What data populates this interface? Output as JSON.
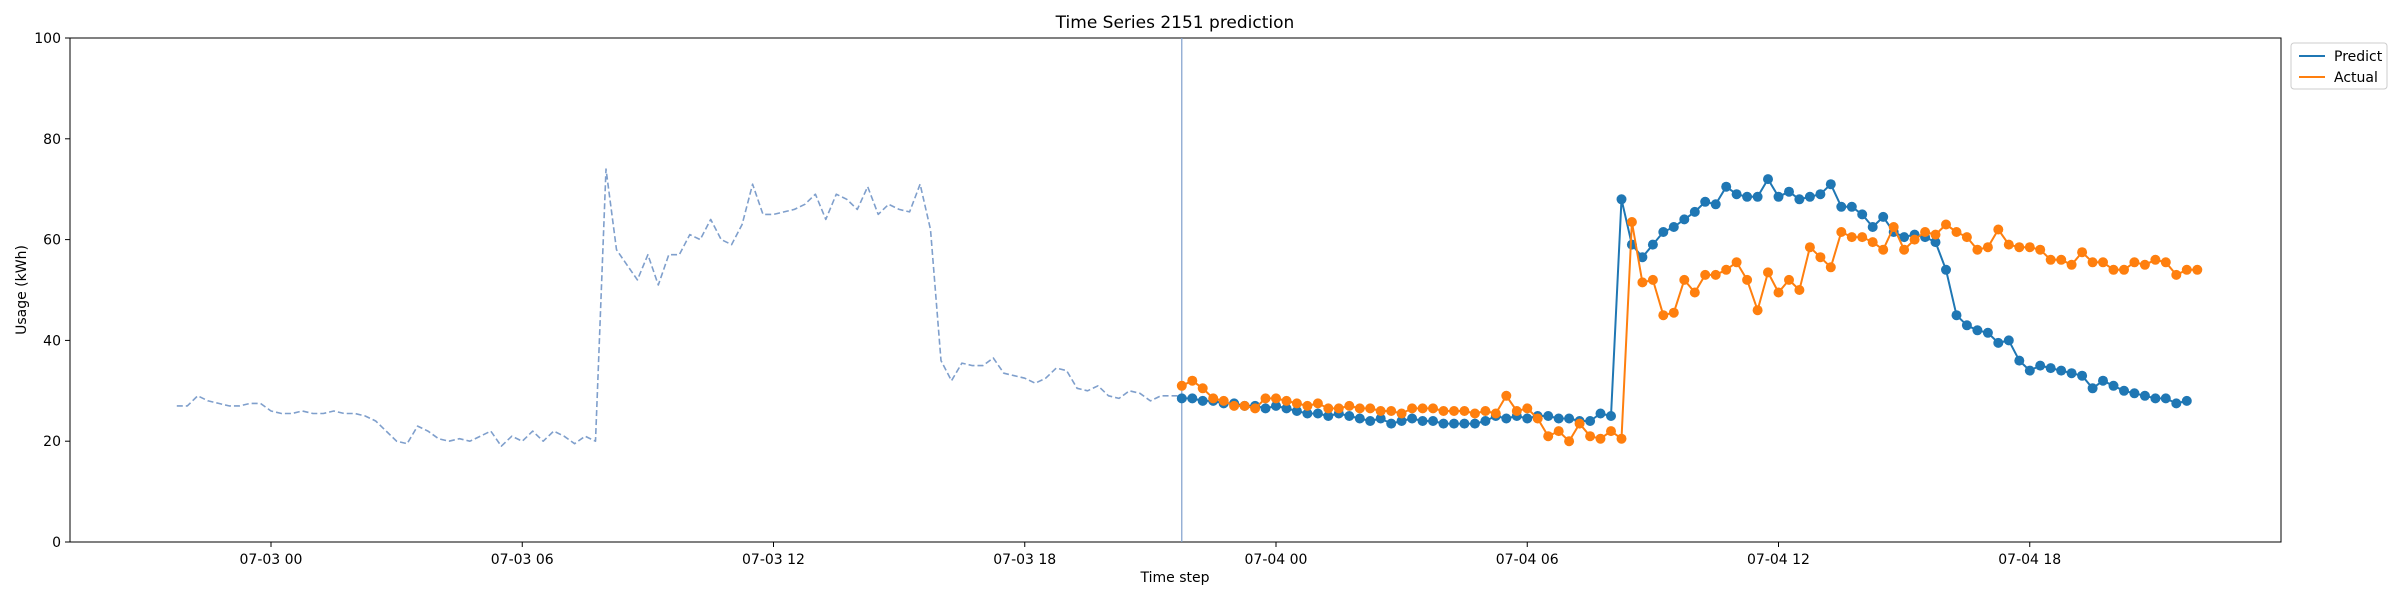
{
  "chart_data": {
    "type": "line",
    "title": "Time Series 2151 prediction",
    "xlabel": "Time step",
    "ylabel": "Usage (kWh)",
    "ylim": [
      0,
      100
    ],
    "xlim_hours": [
      -4.8,
      48.0
    ],
    "x_unit": "hours since 07-03 00:00",
    "yticks": [
      0,
      20,
      40,
      60,
      80,
      100
    ],
    "xticks": [
      {
        "hour": 0,
        "label": "07-03 00"
      },
      {
        "hour": 6,
        "label": "07-03 06"
      },
      {
        "hour": 12,
        "label": "07-03 12"
      },
      {
        "hour": 18,
        "label": "07-03 18"
      },
      {
        "hour": 24,
        "label": "07-04 00"
      },
      {
        "hour": 30,
        "label": "07-04 06"
      },
      {
        "hour": 36,
        "label": "07-04 12"
      },
      {
        "hour": 42,
        "label": "07-04 18"
      }
    ],
    "legend": {
      "position": "outside-top-right",
      "entries": [
        "Predict",
        "Actual"
      ]
    },
    "grid": false,
    "forecast_start_hour": 21.75,
    "series": [
      {
        "name": "History",
        "style": "dashed",
        "color": "#7f9fcc",
        "x_start": -2.25,
        "x_step": 0.25,
        "values": [
          27,
          27,
          29,
          28,
          27.5,
          27,
          27,
          27.5,
          27.5,
          26,
          25.5,
          25.5,
          26,
          25.5,
          25.5,
          26,
          25.5,
          25.5,
          25,
          24,
          22,
          20,
          19.5,
          23,
          22,
          20.5,
          20,
          20.5,
          20,
          21,
          22,
          19,
          21,
          20,
          22,
          20,
          22,
          21,
          19.5,
          21,
          20,
          74,
          58,
          55,
          52,
          57,
          51,
          57,
          57,
          61,
          60,
          64,
          60,
          59,
          63,
          71,
          65,
          65,
          65.5,
          66,
          67,
          69,
          64,
          69,
          68,
          66,
          70.5,
          65,
          67,
          66,
          65.5,
          71,
          62,
          36,
          32,
          35.5,
          35,
          35,
          36.5,
          33.5,
          33,
          32.5,
          31.5,
          32.5,
          34.5,
          34,
          30.5,
          30,
          31,
          29,
          28.5,
          30,
          29.5,
          28,
          29,
          29,
          29
        ]
      },
      {
        "name": "Predict",
        "color": "#1f77b4",
        "x_start": 21.75,
        "x_step": 0.25,
        "values": [
          28.5,
          28.5,
          28,
          28,
          27.5,
          27.5,
          27,
          27,
          26.5,
          27,
          26.5,
          26,
          25.5,
          25.5,
          25,
          25.5,
          25,
          24.5,
          24,
          24.5,
          23.5,
          24,
          24.5,
          24,
          24,
          23.5,
          23.5,
          23.5,
          23.5,
          24,
          25,
          24.5,
          25,
          24.5,
          25,
          25,
          24.5,
          24.5,
          24,
          24,
          25.5,
          25,
          68,
          59,
          56.5,
          59,
          61.5,
          62.5,
          64,
          65.5,
          67.5,
          67,
          70.5,
          69,
          68.5,
          68.5,
          72,
          68.5,
          69.5,
          68,
          68.5,
          69,
          71,
          66.5,
          66.5,
          65,
          62.5,
          64.5,
          61.5,
          60.5,
          61,
          60.5,
          59.5,
          54,
          45,
          43,
          42,
          41.5,
          39.5,
          40,
          36,
          34,
          35,
          34.5,
          34,
          33.5,
          33,
          30.5,
          32,
          31,
          30,
          29.5,
          29,
          28.5,
          28.5,
          27.5,
          28
        ]
      },
      {
        "name": "Actual",
        "color": "#ff7f0e",
        "x_start": 21.75,
        "x_step": 0.25,
        "values": [
          31,
          32,
          30.5,
          28.5,
          28,
          27,
          27,
          26.5,
          28.5,
          28.5,
          28,
          27.5,
          27,
          27.5,
          26.5,
          26.5,
          27,
          26.5,
          26.5,
          26,
          26,
          25.5,
          26.5,
          26.5,
          26.5,
          26,
          26,
          26,
          25.5,
          26,
          25.5,
          29,
          26,
          26.5,
          24.5,
          21,
          22,
          20,
          23.5,
          21,
          20.5,
          22,
          20.5,
          63.5,
          51.5,
          52,
          45,
          45.5,
          52,
          49.5,
          53,
          53,
          54,
          55.5,
          52,
          46,
          53.5,
          49.5,
          52,
          50,
          58.5,
          56.5,
          54.5,
          61.5,
          60.5,
          60.5,
          59.5,
          58,
          62.5,
          58,
          60,
          61.5,
          61,
          63,
          61.5,
          60.5,
          58,
          58.5,
          62,
          59,
          58.5,
          58.5,
          58,
          56,
          56,
          55,
          57.5,
          55.5,
          55.5,
          54,
          54,
          55.5,
          55,
          56,
          55.5,
          53,
          54,
          54
        ]
      }
    ]
  }
}
